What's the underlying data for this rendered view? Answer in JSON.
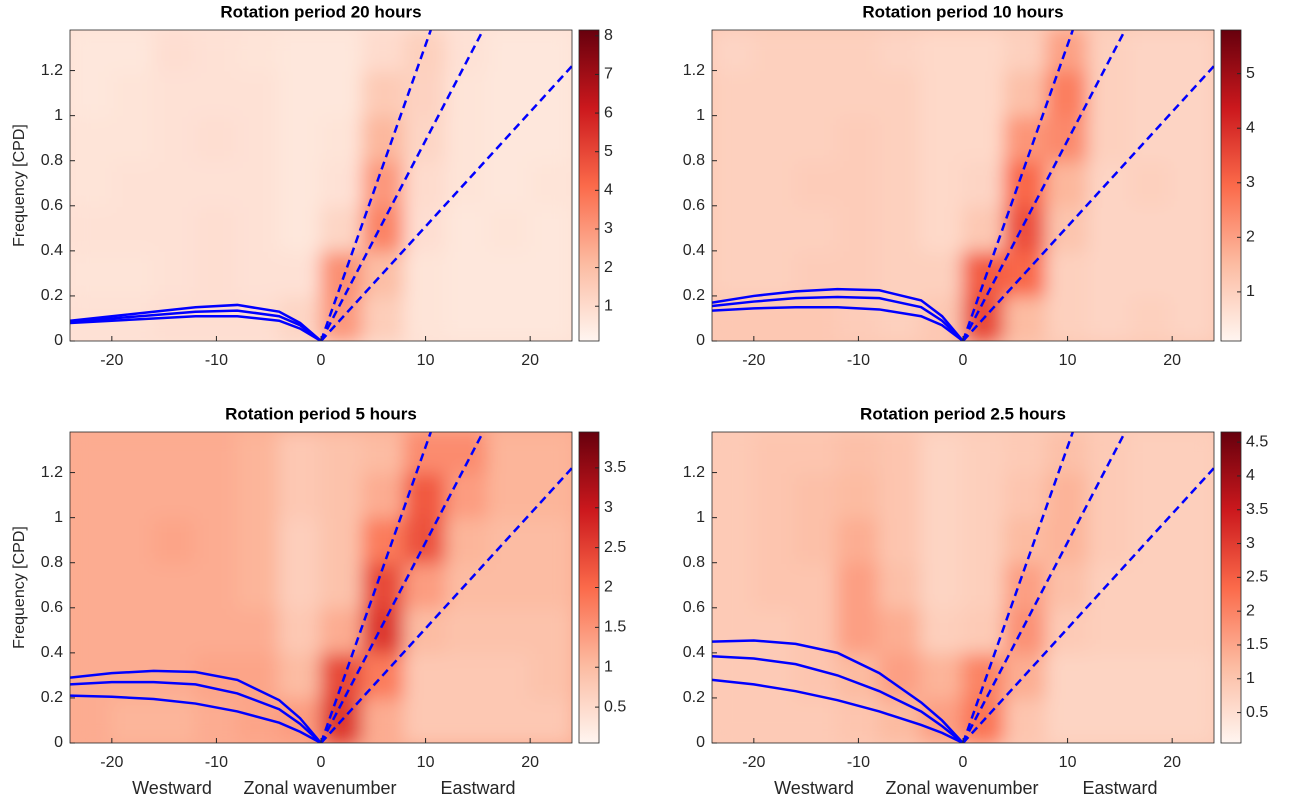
{
  "chart_data": [
    {
      "type": "heatmap",
      "title": "Rotation period 20 hours",
      "ylabel": "Frequency [CPD]",
      "xbins": [
        -24,
        -20,
        -16,
        -12,
        -8,
        -4,
        0,
        4,
        8,
        12,
        16,
        20,
        24
      ],
      "ybins": [
        0,
        0.2,
        0.4,
        0.6,
        0.8,
        1.0,
        1.2,
        1.38
      ],
      "z": [
        [
          0.8,
          0.8,
          0.9,
          0.9,
          0.9,
          1.2,
          3.0,
          1.5,
          0.7,
          0.6,
          0.6,
          0.6
        ],
        [
          0.7,
          0.7,
          0.8,
          0.9,
          0.8,
          0.8,
          3.2,
          2.0,
          0.7,
          0.6,
          0.6,
          0.6
        ],
        [
          0.8,
          0.8,
          0.8,
          0.9,
          0.8,
          0.6,
          1.2,
          3.5,
          0.9,
          0.6,
          0.7,
          0.6
        ],
        [
          0.7,
          0.8,
          0.8,
          0.8,
          0.8,
          0.6,
          0.8,
          3.0,
          1.0,
          0.7,
          0.6,
          0.7
        ],
        [
          0.7,
          0.7,
          0.8,
          0.9,
          0.8,
          0.6,
          0.7,
          2.2,
          1.2,
          0.7,
          0.6,
          0.6
        ],
        [
          0.6,
          0.7,
          0.8,
          0.8,
          0.8,
          0.6,
          0.6,
          1.6,
          1.3,
          0.7,
          0.6,
          0.6
        ],
        [
          0.6,
          0.6,
          0.9,
          0.8,
          0.7,
          0.6,
          0.6,
          1.0,
          1.4,
          0.8,
          0.6,
          0.6
        ]
      ],
      "xlim": [
        -24,
        24
      ],
      "ylim": [
        0,
        1.38
      ],
      "xticks": [
        -20,
        -10,
        0,
        10,
        20
      ],
      "yticks": [
        0,
        0.2,
        0.4,
        0.6,
        0.8,
        1,
        1.2
      ],
      "clim": [
        0.1,
        8.15
      ],
      "cticks": [
        1,
        2,
        3,
        4,
        5,
        6,
        7,
        8
      ],
      "colormap": [
        "#fff5f0",
        "#fcbba1",
        "#fb6a4a",
        "#cb181d",
        "#67000d"
      ],
      "series": [
        {
          "color": "#0000ff",
          "dashed": true,
          "x": [
            0,
            10.5
          ],
          "y": [
            0,
            1.38
          ]
        },
        {
          "color": "#0000ff",
          "dashed": true,
          "x": [
            0,
            15.5
          ],
          "y": [
            0,
            1.38
          ]
        },
        {
          "color": "#0000ff",
          "dashed": true,
          "x": [
            0,
            24
          ],
          "y": [
            0,
            1.22
          ]
        },
        {
          "color": "#0000ff",
          "dashed": false,
          "x": [
            -24,
            -20,
            -16,
            -12,
            -8,
            -4,
            -2,
            0
          ],
          "y": [
            0.09,
            0.11,
            0.13,
            0.15,
            0.16,
            0.13,
            0.08,
            0
          ]
        },
        {
          "color": "#0000ff",
          "dashed": false,
          "x": [
            -24,
            -20,
            -16,
            -12,
            -8,
            -4,
            -2,
            0
          ],
          "y": [
            0.085,
            0.1,
            0.115,
            0.13,
            0.135,
            0.11,
            0.07,
            0
          ]
        },
        {
          "color": "#0000ff",
          "dashed": false,
          "x": [
            -24,
            -20,
            -16,
            -12,
            -8,
            -4,
            -2,
            0
          ],
          "y": [
            0.08,
            0.09,
            0.1,
            0.11,
            0.11,
            0.09,
            0.055,
            0
          ]
        }
      ]
    },
    {
      "type": "heatmap",
      "title": "Rotation period 10 hours",
      "xbins": [
        -24,
        -20,
        -16,
        -12,
        -8,
        -4,
        0,
        4,
        8,
        12,
        16,
        20,
        24
      ],
      "ybins": [
        0,
        0.2,
        0.4,
        0.6,
        0.8,
        1.0,
        1.2,
        1.38
      ],
      "z": [
        [
          1.2,
          1.2,
          1.2,
          1.1,
          1.0,
          1.2,
          3.5,
          1.5,
          1.0,
          0.9,
          1.0,
          0.9
        ],
        [
          1.0,
          1.0,
          1.1,
          1.1,
          1.0,
          1.0,
          3.2,
          3.0,
          1.0,
          0.9,
          0.9,
          0.9
        ],
        [
          1.0,
          1.0,
          1.0,
          1.1,
          1.0,
          0.8,
          1.2,
          3.4,
          1.3,
          0.9,
          0.9,
          0.9
        ],
        [
          1.0,
          1.0,
          1.1,
          1.1,
          1.0,
          0.8,
          0.9,
          3.0,
          1.6,
          0.9,
          1.0,
          0.9
        ],
        [
          1.0,
          1.0,
          1.0,
          1.1,
          1.0,
          0.8,
          0.8,
          2.2,
          2.4,
          1.0,
          0.9,
          0.9
        ],
        [
          1.0,
          1.0,
          1.0,
          1.0,
          1.0,
          0.8,
          0.8,
          1.4,
          2.6,
          1.0,
          0.9,
          0.9
        ],
        [
          0.9,
          1.0,
          1.0,
          1.0,
          0.9,
          0.8,
          0.8,
          1.0,
          2.0,
          1.0,
          0.9,
          0.9
        ]
      ],
      "xlim": [
        -24,
        24
      ],
      "ylim": [
        0,
        1.38
      ],
      "xticks": [
        -20,
        -10,
        0,
        10,
        20
      ],
      "yticks": [
        0,
        0.2,
        0.4,
        0.6,
        0.8,
        1,
        1.2
      ],
      "clim": [
        0.1,
        5.8
      ],
      "cticks": [
        1,
        2,
        3,
        4,
        5
      ],
      "colormap": [
        "#fff5f0",
        "#fcbba1",
        "#fb6a4a",
        "#cb181d",
        "#67000d"
      ],
      "series": [
        {
          "color": "#0000ff",
          "dashed": true,
          "x": [
            0,
            10.5
          ],
          "y": [
            0,
            1.38
          ]
        },
        {
          "color": "#0000ff",
          "dashed": true,
          "x": [
            0,
            15.5
          ],
          "y": [
            0,
            1.38
          ]
        },
        {
          "color": "#0000ff",
          "dashed": true,
          "x": [
            0,
            24
          ],
          "y": [
            0,
            1.22
          ]
        },
        {
          "color": "#0000ff",
          "dashed": false,
          "x": [
            -24,
            -20,
            -16,
            -12,
            -8,
            -4,
            -2,
            0
          ],
          "y": [
            0.17,
            0.2,
            0.22,
            0.23,
            0.225,
            0.18,
            0.11,
            0
          ]
        },
        {
          "color": "#0000ff",
          "dashed": false,
          "x": [
            -24,
            -20,
            -16,
            -12,
            -8,
            -4,
            -2,
            0
          ],
          "y": [
            0.155,
            0.175,
            0.19,
            0.195,
            0.19,
            0.15,
            0.09,
            0
          ]
        },
        {
          "color": "#0000ff",
          "dashed": false,
          "x": [
            -24,
            -20,
            -16,
            -12,
            -8,
            -4,
            -2,
            0
          ],
          "y": [
            0.135,
            0.145,
            0.15,
            0.15,
            0.14,
            0.11,
            0.07,
            0
          ]
        }
      ]
    },
    {
      "type": "heatmap",
      "title": "Rotation period 5 hours",
      "ylabel": "Frequency [CPD]",
      "xlabels": [
        "Westward",
        "Zonal wavenumber",
        "Eastward"
      ],
      "xbins": [
        -24,
        -20,
        -16,
        -12,
        -8,
        -4,
        0,
        4,
        8,
        12,
        16,
        20,
        24
      ],
      "ybins": [
        0,
        0.2,
        0.4,
        0.6,
        0.8,
        1.0,
        1.2,
        1.38
      ],
      "z": [
        [
          1.2,
          1.1,
          1.1,
          1.2,
          1.3,
          1.4,
          2.6,
          1.2,
          0.8,
          0.8,
          0.8,
          0.8
        ],
        [
          1.2,
          1.2,
          1.2,
          1.3,
          1.3,
          1.0,
          2.4,
          1.8,
          0.8,
          0.8,
          0.8,
          0.9
        ],
        [
          1.2,
          1.2,
          1.2,
          1.2,
          1.2,
          0.8,
          1.2,
          2.6,
          1.0,
          0.9,
          0.9,
          0.9
        ],
        [
          1.2,
          1.2,
          1.2,
          1.2,
          1.1,
          0.7,
          0.9,
          2.4,
          1.4,
          1.0,
          1.0,
          1.0
        ],
        [
          1.2,
          1.2,
          1.3,
          1.2,
          1.1,
          0.7,
          0.9,
          1.8,
          2.3,
          1.1,
          1.0,
          1.0
        ],
        [
          1.2,
          1.2,
          1.2,
          1.2,
          1.1,
          0.8,
          0.9,
          1.2,
          2.2,
          1.4,
          1.1,
          1.1
        ],
        [
          1.2,
          1.2,
          1.2,
          1.2,
          1.1,
          0.8,
          0.9,
          1.0,
          1.6,
          1.6,
          1.1,
          1.1
        ]
      ],
      "xlim": [
        -24,
        24
      ],
      "ylim": [
        0,
        1.38
      ],
      "xticks": [
        -20,
        -10,
        0,
        10,
        20
      ],
      "yticks": [
        0,
        0.2,
        0.4,
        0.6,
        0.8,
        1,
        1.2
      ],
      "clim": [
        0.05,
        3.95
      ],
      "cticks": [
        0.5,
        1,
        1.5,
        2,
        2.5,
        3,
        3.5
      ],
      "colormap": [
        "#fff5f0",
        "#fcbba1",
        "#fb6a4a",
        "#cb181d",
        "#67000d"
      ],
      "series": [
        {
          "color": "#0000ff",
          "dashed": true,
          "x": [
            0,
            10.5
          ],
          "y": [
            0,
            1.38
          ]
        },
        {
          "color": "#0000ff",
          "dashed": true,
          "x": [
            0,
            15.5
          ],
          "y": [
            0,
            1.38
          ]
        },
        {
          "color": "#0000ff",
          "dashed": true,
          "x": [
            0,
            24
          ],
          "y": [
            0,
            1.22
          ]
        },
        {
          "color": "#0000ff",
          "dashed": false,
          "x": [
            -24,
            -20,
            -16,
            -12,
            -8,
            -4,
            -2,
            0
          ],
          "y": [
            0.29,
            0.31,
            0.32,
            0.315,
            0.28,
            0.19,
            0.11,
            0
          ]
        },
        {
          "color": "#0000ff",
          "dashed": false,
          "x": [
            -24,
            -20,
            -16,
            -12,
            -8,
            -4,
            -2,
            0
          ],
          "y": [
            0.26,
            0.27,
            0.27,
            0.26,
            0.22,
            0.15,
            0.085,
            0
          ]
        },
        {
          "color": "#0000ff",
          "dashed": false,
          "x": [
            -24,
            -20,
            -16,
            -12,
            -8,
            -4,
            -2,
            0
          ],
          "y": [
            0.21,
            0.205,
            0.195,
            0.175,
            0.14,
            0.09,
            0.05,
            0
          ]
        }
      ]
    },
    {
      "type": "heatmap",
      "title": "Rotation period 2.5 hours",
      "xlabels": [
        "Westward",
        "Zonal wavenumber",
        "Eastward"
      ],
      "xbins": [
        -24,
        -20,
        -16,
        -12,
        -8,
        -4,
        0,
        4,
        8,
        12,
        16,
        20,
        24
      ],
      "ybins": [
        0,
        0.2,
        0.4,
        0.6,
        0.8,
        1.0,
        1.2,
        1.38
      ],
      "z": [
        [
          0.9,
          0.9,
          0.9,
          1.0,
          1.2,
          1.6,
          2.2,
          1.0,
          0.7,
          0.7,
          0.7,
          0.7
        ],
        [
          0.9,
          0.9,
          1.0,
          1.2,
          1.6,
          1.3,
          2.0,
          1.4,
          0.7,
          0.7,
          0.7,
          0.7
        ],
        [
          0.9,
          0.9,
          1.0,
          1.6,
          1.4,
          0.8,
          0.9,
          1.8,
          0.9,
          0.8,
          0.8,
          0.8
        ],
        [
          0.9,
          1.0,
          1.0,
          1.6,
          1.1,
          0.7,
          0.8,
          1.6,
          1.1,
          0.8,
          0.8,
          0.8
        ],
        [
          0.9,
          1.0,
          1.1,
          1.4,
          1.0,
          0.7,
          0.8,
          1.2,
          1.3,
          0.9,
          0.8,
          0.8
        ],
        [
          0.9,
          1.0,
          1.1,
          1.2,
          1.0,
          0.7,
          0.8,
          1.0,
          1.3,
          0.9,
          0.8,
          0.8
        ],
        [
          0.9,
          1.0,
          1.0,
          1.1,
          1.0,
          0.7,
          0.8,
          0.9,
          1.1,
          0.9,
          0.8,
          0.8
        ]
      ],
      "xlim": [
        -24,
        24
      ],
      "ylim": [
        0,
        1.38
      ],
      "xticks": [
        -20,
        -10,
        0,
        10,
        20
      ],
      "yticks": [
        0,
        0.2,
        0.4,
        0.6,
        0.8,
        1,
        1.2
      ],
      "clim": [
        0.05,
        4.65
      ],
      "cticks": [
        0.5,
        1,
        1.5,
        2,
        2.5,
        3,
        3.5,
        4,
        4.5
      ],
      "colormap": [
        "#fff5f0",
        "#fcbba1",
        "#fb6a4a",
        "#cb181d",
        "#67000d"
      ],
      "series": [
        {
          "color": "#0000ff",
          "dashed": true,
          "x": [
            0,
            10.5
          ],
          "y": [
            0,
            1.38
          ]
        },
        {
          "color": "#0000ff",
          "dashed": true,
          "x": [
            0,
            15.5
          ],
          "y": [
            0,
            1.38
          ]
        },
        {
          "color": "#0000ff",
          "dashed": true,
          "x": [
            0,
            24
          ],
          "y": [
            0,
            1.22
          ]
        },
        {
          "color": "#0000ff",
          "dashed": false,
          "x": [
            -24,
            -20,
            -16,
            -12,
            -8,
            -4,
            -2,
            0
          ],
          "y": [
            0.45,
            0.455,
            0.44,
            0.4,
            0.31,
            0.18,
            0.1,
            0
          ]
        },
        {
          "color": "#0000ff",
          "dashed": false,
          "x": [
            -24,
            -20,
            -16,
            -12,
            -8,
            -4,
            -2,
            0
          ],
          "y": [
            0.385,
            0.375,
            0.35,
            0.3,
            0.23,
            0.14,
            0.075,
            0
          ]
        },
        {
          "color": "#0000ff",
          "dashed": false,
          "x": [
            -24,
            -20,
            -16,
            -12,
            -8,
            -4,
            -2,
            0
          ],
          "y": [
            0.28,
            0.26,
            0.23,
            0.19,
            0.14,
            0.08,
            0.045,
            0
          ]
        }
      ]
    }
  ]
}
